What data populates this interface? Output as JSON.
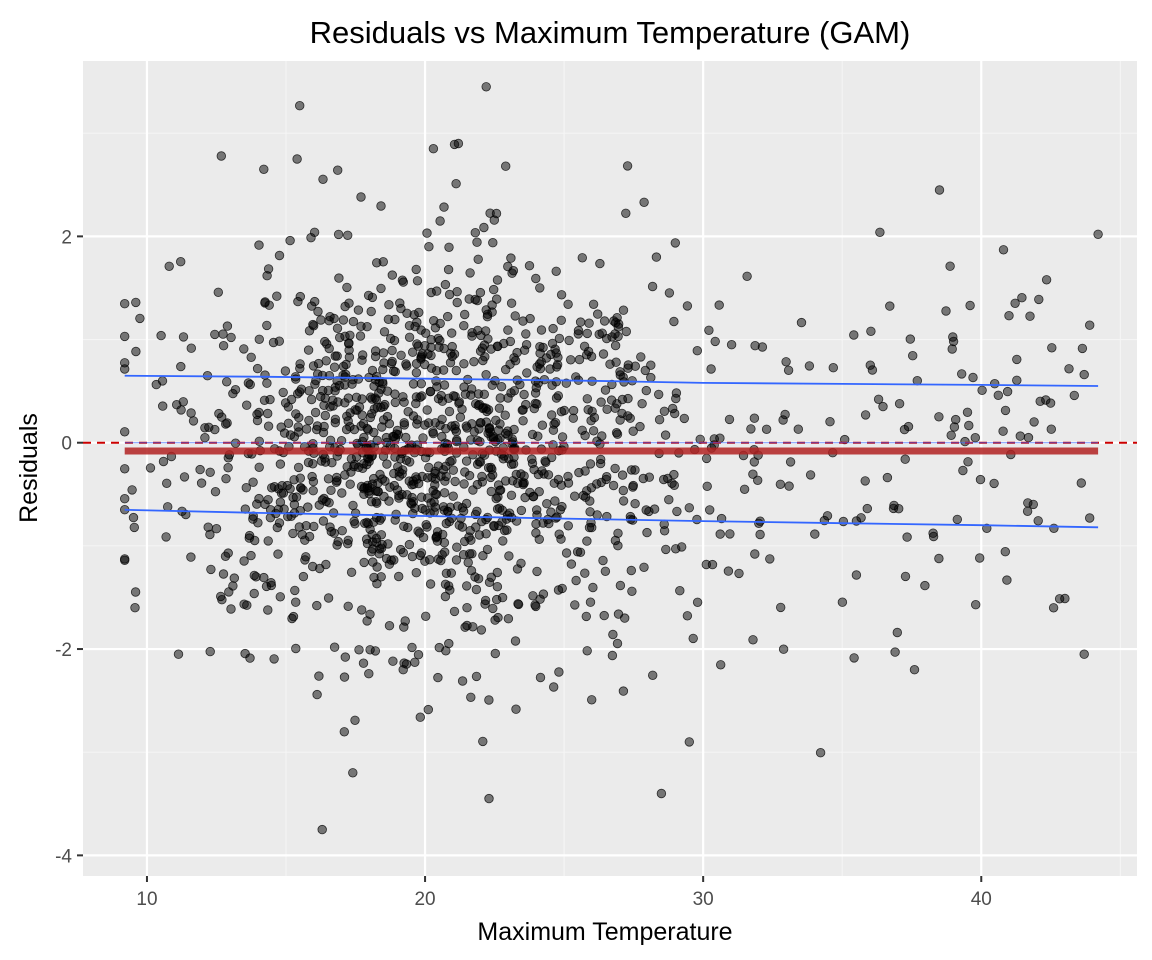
{
  "chart_data": {
    "type": "scatter",
    "title": "Residuals vs Maximum Temperature (GAM)",
    "xlabel": "Maximum Temperature",
    "ylabel": "Residuals",
    "xlim": [
      7.7,
      45.6
    ],
    "ylim": [
      -4.2,
      3.7
    ],
    "x_ticks": [
      10,
      20,
      30,
      40
    ],
    "y_ticks": [
      -4,
      -2,
      0,
      2
    ],
    "x_tick_labels": [
      "10",
      "20",
      "30",
      "40"
    ],
    "y_tick_labels": [
      "-4",
      "-2",
      "0",
      "2"
    ],
    "grid": true,
    "n_points": 1500,
    "points_description_seed": 12345,
    "colors": {
      "panel_background": "#ebebeb",
      "grid_major": "#ffffff",
      "grid_minor": "#f5f5f5",
      "points": "#000000",
      "quantile_lines": "#3366ff",
      "mean_line": "#b22222",
      "zero_line": "#cc0000"
    },
    "reference_line": {
      "y": 0,
      "style": "dashed"
    },
    "mean_line": {
      "x": [
        9.2,
        44.2
      ],
      "y": [
        -0.08,
        -0.08
      ]
    },
    "upper_quantile_line": {
      "x": [
        9.2,
        14,
        20,
        26,
        30,
        35,
        40,
        44.2
      ],
      "y": [
        0.65,
        0.64,
        0.62,
        0.6,
        0.58,
        0.57,
        0.56,
        0.55
      ]
    },
    "lower_quantile_line": {
      "x": [
        9.2,
        14,
        20,
        26,
        30,
        35,
        40,
        44.2
      ],
      "y": [
        -0.65,
        -0.68,
        -0.71,
        -0.74,
        -0.76,
        -0.78,
        -0.8,
        -0.82
      ]
    },
    "highlight_points": [
      {
        "x": 22.2,
        "y": 3.45
      },
      {
        "x": 21.2,
        "y": 2.9
      },
      {
        "x": 20.3,
        "y": 2.85
      },
      {
        "x": 15.4,
        "y": 2.75
      },
      {
        "x": 22.9,
        "y": 2.68
      },
      {
        "x": 14.2,
        "y": 2.65
      },
      {
        "x": 38.5,
        "y": 2.45
      },
      {
        "x": 44.2,
        "y": 2.02
      },
      {
        "x": 40.8,
        "y": 1.87
      },
      {
        "x": 39.6,
        "y": 1.33
      },
      {
        "x": 16.3,
        "y": -3.75
      },
      {
        "x": 22.3,
        "y": -3.45
      },
      {
        "x": 28.5,
        "y": -3.4
      },
      {
        "x": 17.4,
        "y": -3.2
      },
      {
        "x": 29.5,
        "y": -2.9
      },
      {
        "x": 43.7,
        "y": -2.05
      },
      {
        "x": 37.6,
        "y": -2.2
      },
      {
        "x": 36.9,
        "y": -2.03
      },
      {
        "x": 42.6,
        "y": -1.6
      },
      {
        "x": 39.8,
        "y": -1.57
      },
      {
        "x": 9.2,
        "y": 1.03
      },
      {
        "x": 9.6,
        "y": 1.36
      },
      {
        "x": 10.8,
        "y": 1.71
      },
      {
        "x": 43.9,
        "y": -0.73
      },
      {
        "x": 43.7,
        "y": 0.66
      },
      {
        "x": 41.7,
        "y": 0.05
      },
      {
        "x": 40.2,
        "y": -0.83
      }
    ]
  }
}
